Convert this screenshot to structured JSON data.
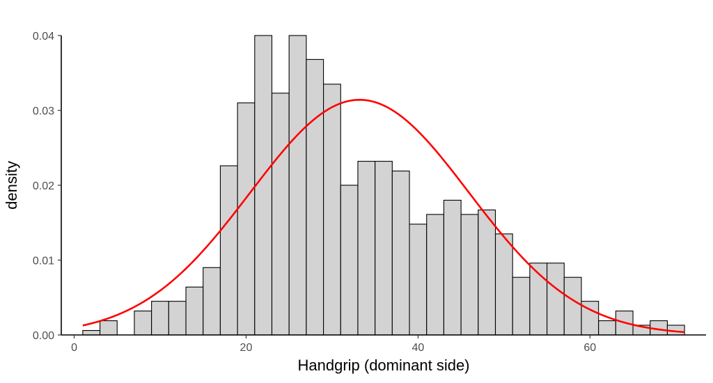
{
  "chart_data": {
    "type": "bar",
    "subtype": "histogram_with_normal_curve",
    "xlabel": "Handgrip (dominant side)",
    "ylabel": "density",
    "xlim": [
      -1.5,
      73.5
    ],
    "ylim": [
      0,
      0.04
    ],
    "xticks": [
      0,
      20,
      40,
      60
    ],
    "yticks": [
      0.0,
      0.01,
      0.02,
      0.03,
      0.04
    ],
    "ytick_labels": [
      "0.00",
      "0.01",
      "0.02",
      "0.03",
      "0.04"
    ],
    "grid": false,
    "bins": [
      {
        "x0": 1,
        "x1": 3,
        "density": 0.0006
      },
      {
        "x0": 3,
        "x1": 5,
        "density": 0.0019
      },
      {
        "x0": 5,
        "x1": 7,
        "density": 0.0
      },
      {
        "x0": 7,
        "x1": 9,
        "density": 0.0032
      },
      {
        "x0": 9,
        "x1": 11,
        "density": 0.0045
      },
      {
        "x0": 11,
        "x1": 13,
        "density": 0.0045
      },
      {
        "x0": 13,
        "x1": 15,
        "density": 0.0064
      },
      {
        "x0": 15,
        "x1": 17,
        "density": 0.009
      },
      {
        "x0": 17,
        "x1": 19,
        "density": 0.0226
      },
      {
        "x0": 19,
        "x1": 21,
        "density": 0.031
      },
      {
        "x0": 21,
        "x1": 23,
        "density": 0.04
      },
      {
        "x0": 23,
        "x1": 25,
        "density": 0.0323
      },
      {
        "x0": 25,
        "x1": 27,
        "density": 0.04
      },
      {
        "x0": 27,
        "x1": 29,
        "density": 0.0368
      },
      {
        "x0": 29,
        "x1": 31,
        "density": 0.0335
      },
      {
        "x0": 31,
        "x1": 33,
        "density": 0.02
      },
      {
        "x0": 33,
        "x1": 35,
        "density": 0.0232
      },
      {
        "x0": 35,
        "x1": 37,
        "density": 0.0232
      },
      {
        "x0": 37,
        "x1": 39,
        "density": 0.0219
      },
      {
        "x0": 39,
        "x1": 41,
        "density": 0.0148
      },
      {
        "x0": 41,
        "x1": 43,
        "density": 0.0161
      },
      {
        "x0": 43,
        "x1": 45,
        "density": 0.018
      },
      {
        "x0": 45,
        "x1": 47,
        "density": 0.0161
      },
      {
        "x0": 47,
        "x1": 49,
        "density": 0.0167
      },
      {
        "x0": 49,
        "x1": 51,
        "density": 0.0135
      },
      {
        "x0": 51,
        "x1": 53,
        "density": 0.0077
      },
      {
        "x0": 53,
        "x1": 55,
        "density": 0.0096
      },
      {
        "x0": 55,
        "x1": 57,
        "density": 0.0096
      },
      {
        "x0": 57,
        "x1": 59,
        "density": 0.0077
      },
      {
        "x0": 59,
        "x1": 61,
        "density": 0.0045
      },
      {
        "x0": 61,
        "x1": 63,
        "density": 0.0019
      },
      {
        "x0": 63,
        "x1": 65,
        "density": 0.0032
      },
      {
        "x0": 65,
        "x1": 67,
        "density": 0.0013
      },
      {
        "x0": 67,
        "x1": 69,
        "density": 0.0019
      },
      {
        "x0": 69,
        "x1": 71,
        "density": 0.0013
      }
    ],
    "normal_curve": {
      "mean": 33.2,
      "sd": 12.7,
      "x_range": [
        1,
        71
      ]
    },
    "colors": {
      "bar_fill": "#d3d3d3",
      "bar_stroke": "#000000",
      "curve": "#ff0000",
      "axis": "#000000"
    }
  }
}
